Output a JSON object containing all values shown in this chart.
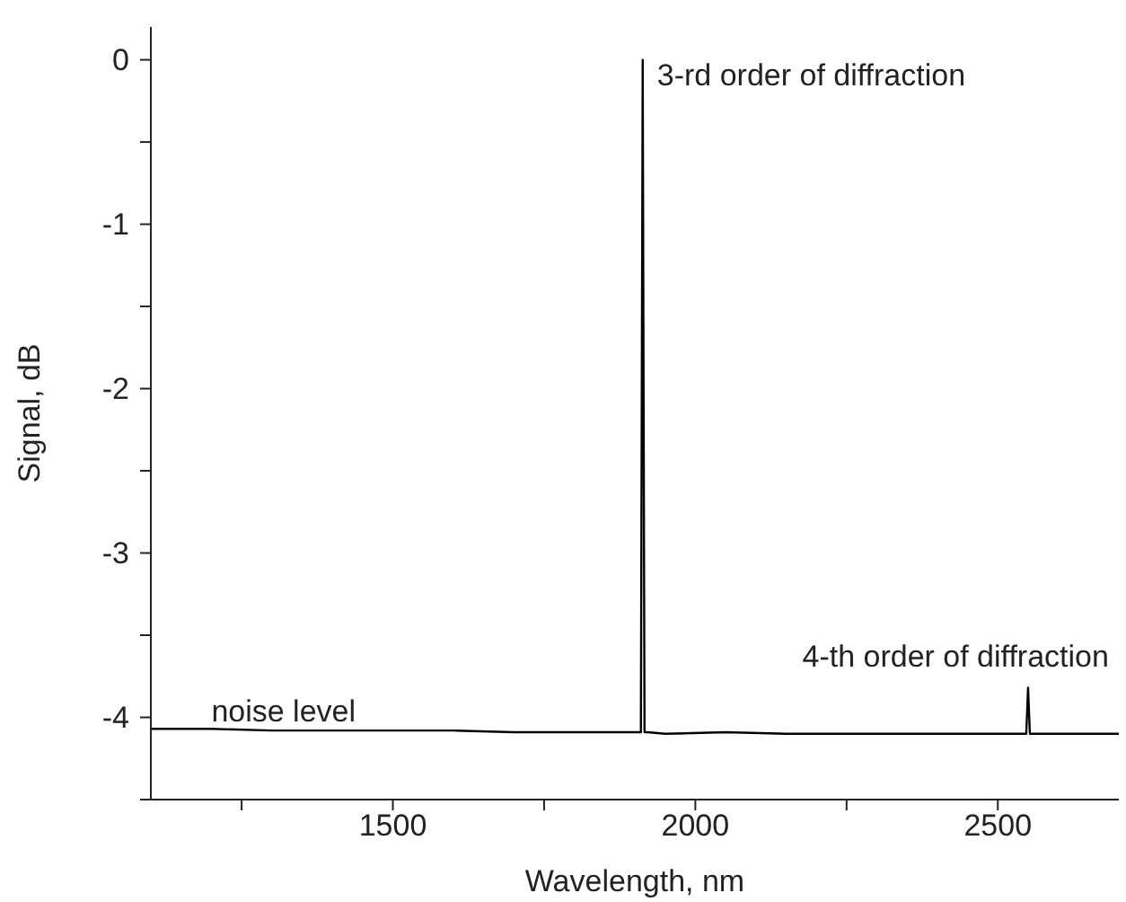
{
  "chart_data": {
    "type": "line",
    "xlabel": "Wavelength, nm",
    "ylabel": "Signal, dB",
    "series": [
      {
        "color": "#000000",
        "x": [
          1100,
          1200,
          1300,
          1400,
          1500,
          1600,
          1700,
          1800,
          1880,
          1905,
          1910,
          1913,
          1916,
          1921,
          1950,
          2050,
          2150,
          2250,
          2350,
          2450,
          2540,
          2547,
          2550,
          2553,
          2560,
          2620,
          2700
        ],
        "values": [
          -4.07,
          -4.07,
          -4.08,
          -4.08,
          -4.08,
          -4.08,
          -4.09,
          -4.09,
          -4.09,
          -4.09,
          -4.09,
          0,
          -4.09,
          -4.09,
          -4.1,
          -4.09,
          -4.1,
          -4.1,
          -4.1,
          -4.1,
          -4.1,
          -4.1,
          -3.82,
          -4.1,
          -4.1,
          -4.1,
          -4.1
        ]
      }
    ],
    "xlim": [
      1100,
      2700
    ],
    "xticks": [
      {
        "value": 1250,
        "label": null
      },
      1500,
      {
        "value": 1750,
        "label": null
      },
      2000,
      {
        "value": 2250,
        "label": null
      },
      2500
    ],
    "ylim": [
      -4.5,
      0.2
    ],
    "yticks": [
      {
        "value": -4.5,
        "label": null
      },
      -4,
      {
        "value": -3.5,
        "label": null
      },
      -3,
      {
        "value": -2.5,
        "label": null
      },
      -2,
      {
        "value": -1.5,
        "label": null
      },
      -1,
      {
        "value": -0.5,
        "label": null
      },
      0
    ],
    "grid": false,
    "marker": "none",
    "line_style": "solid",
    "annotations": [
      {
        "text": "3-rd order of diffraction",
        "x": 1913,
        "y": 0
      },
      {
        "text": "4-th order of diffraction",
        "x": 2550,
        "y": -3.82
      },
      {
        "text": "noise level",
        "x": 1200,
        "y": -4.08
      }
    ]
  }
}
